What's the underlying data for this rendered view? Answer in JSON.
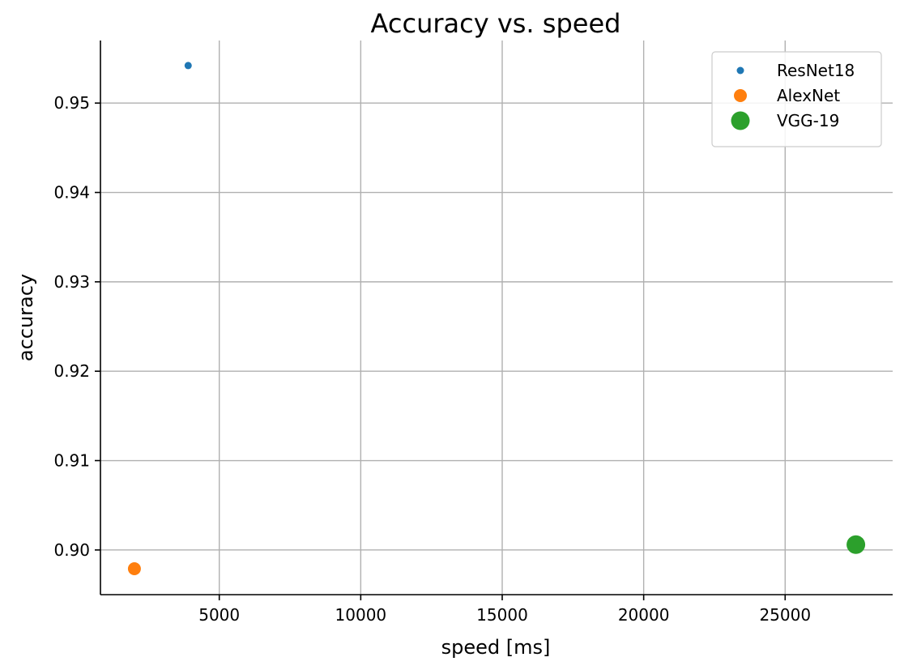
{
  "chart_data": {
    "type": "scatter",
    "title": "Accuracy vs. speed",
    "xlabel": "speed [ms]",
    "ylabel": "accuracy",
    "xlim": [
      800,
      28800
    ],
    "ylim": [
      0.895,
      0.957
    ],
    "xticks": [
      5000,
      10000,
      15000,
      20000,
      25000
    ],
    "yticks": [
      0.9,
      0.91,
      0.92,
      0.93,
      0.94,
      0.95
    ],
    "xtick_labels": [
      "5000",
      "10000",
      "15000",
      "20000",
      "25000"
    ],
    "ytick_labels": [
      "0.90",
      "0.91",
      "0.92",
      "0.93",
      "0.94",
      "0.95"
    ],
    "grid": true,
    "legend_position": "top-right",
    "series": [
      {
        "name": "ResNet18",
        "color": "#1f77b4",
        "size": "small",
        "points": [
          {
            "x": 3900,
            "y": 0.9542
          }
        ]
      },
      {
        "name": "AlexNet",
        "color": "#ff7f0e",
        "size": "medium",
        "points": [
          {
            "x": 2000,
            "y": 0.8979
          }
        ]
      },
      {
        "name": "VGG-19",
        "color": "#2ca02c",
        "size": "large",
        "points": [
          {
            "x": 27500,
            "y": 0.9006
          }
        ]
      }
    ]
  }
}
